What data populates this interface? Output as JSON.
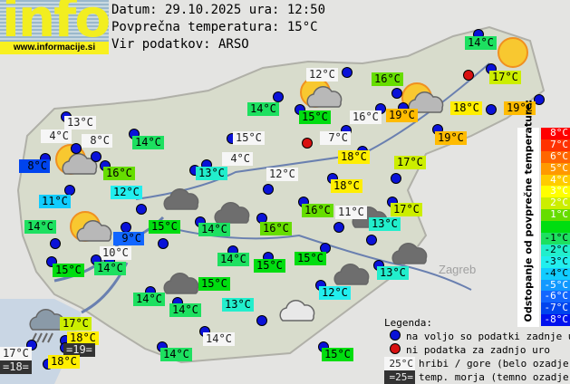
{
  "logo": {
    "word": "info",
    "url": "www.informacije.si"
  },
  "header": {
    "date_line": "Datum: 29.10.2025 ura: 12:50",
    "avg_line": "Povprečna temperatura: 15°C",
    "source_line": "Vir podatkov: ARSO"
  },
  "colors": {
    "station_dot": "#0a12d8",
    "no_data_dot": "#d81010",
    "mountain_bg": "#f6f6f6",
    "sea_bg": "#333333"
  },
  "stations": [
    {
      "t": "14°C",
      "c": "#1de060"
    },
    {
      "t": "12°C",
      "c": "white"
    },
    {
      "t": "16°C",
      "c": "#66dd00"
    },
    {
      "t": "17°C",
      "c": "#ccee00"
    },
    {
      "t": "14°C",
      "c": "#1de060"
    },
    {
      "t": "15°C",
      "c": "#00dd10"
    },
    {
      "t": "16°C",
      "c": "white"
    },
    {
      "t": "19°C",
      "c": "#ffbb00"
    },
    {
      "t": "18°C",
      "c": "#ffee00"
    },
    {
      "t": "19°C",
      "c": "#ffbb00"
    },
    {
      "t": "13°C",
      "c": "white"
    },
    {
      "t": "4°C",
      "c": "white"
    },
    {
      "t": "8°C",
      "c": "white"
    },
    {
      "t": "14°C",
      "c": "#1de060"
    },
    {
      "t": "15°C",
      "c": "white"
    },
    {
      "t": "7°C",
      "c": "white"
    },
    {
      "t": "19°C",
      "c": "#ffbb00"
    },
    {
      "t": "8°C",
      "c": "#0044ee"
    },
    {
      "t": "16°C",
      "c": "#66dd00"
    },
    {
      "t": "4°C",
      "c": "white"
    },
    {
      "t": "18°C",
      "c": "#ffee00"
    },
    {
      "t": "17°C",
      "c": "#ccee00"
    },
    {
      "t": "13°C",
      "c": "#22eecc"
    },
    {
      "t": "12°C",
      "c": "white"
    },
    {
      "t": "12°C",
      "c": "#22eeee"
    },
    {
      "t": "18°C",
      "c": "#ffee00"
    },
    {
      "t": "11°C",
      "c": "#11ccff"
    },
    {
      "t": "16°C",
      "c": "#66dd00"
    },
    {
      "t": "11°C",
      "c": "white"
    },
    {
      "t": "17°C",
      "c": "#ccee00"
    },
    {
      "t": "14°C",
      "c": "#1de060"
    },
    {
      "t": "16°C",
      "c": "#66dd00"
    },
    {
      "t": "13°C",
      "c": "#22eecc"
    },
    {
      "t": "14°C",
      "c": "#1de060"
    },
    {
      "t": "15°C",
      "c": "#00dd10"
    },
    {
      "t": "9°C",
      "c": "#1166ff"
    },
    {
      "t": "10°C",
      "c": "white"
    },
    {
      "t": "15°C",
      "c": "#00dd10"
    },
    {
      "t": "14°C",
      "c": "#1de060"
    },
    {
      "t": "14°C",
      "c": "#1de060"
    },
    {
      "t": "15°C",
      "c": "#00dd10"
    },
    {
      "t": "15°C",
      "c": "#00dd10"
    },
    {
      "t": "13°C",
      "c": "#22eecc"
    },
    {
      "t": "14°C",
      "c": "#1de060"
    },
    {
      "t": "15°C",
      "c": "#00dd10"
    },
    {
      "t": "12°C",
      "c": "#22eeee"
    },
    {
      "t": "14°C",
      "c": "#1de060"
    },
    {
      "t": "13°C",
      "c": "#22eecc"
    },
    {
      "t": "17°C",
      "c": "#ccee00"
    },
    {
      "t": "18°C",
      "c": "#ffee00"
    },
    {
      "t": "=19=",
      "c": "dark"
    },
    {
      "t": "14°C",
      "c": "white"
    },
    {
      "t": "17°C",
      "c": "white"
    },
    {
      "t": "18°C",
      "c": "#ffee00"
    },
    {
      "t": "=18=",
      "c": "dark"
    },
    {
      "t": "14°C",
      "c": "#1de060"
    },
    {
      "t": "15°C",
      "c": "#00dd10"
    }
  ],
  "weather_icons": [
    "sun",
    "partly-cloudy",
    "partly-cloudy",
    "partly-cloudy",
    "partly-cloudy",
    "cloudy-dark",
    "cloudy-dark",
    "cloudy-dark",
    "cloudy-dark",
    "cloudy-dark",
    "cloudy-dark",
    "rain",
    "cloudy-light"
  ],
  "scale": {
    "title": "Odstopanje od povprečne temperature:",
    "steps": [
      {
        "label": "8°C",
        "color": "#ff0000"
      },
      {
        "label": "7°C",
        "color": "#ff3300"
      },
      {
        "label": "6°C",
        "color": "#ff6600"
      },
      {
        "label": "5°C",
        "color": "#ff9900"
      },
      {
        "label": "4°C",
        "color": "#ffcc00"
      },
      {
        "label": "3°C",
        "color": "#ffff00"
      },
      {
        "label": "2°C",
        "color": "#ccee00"
      },
      {
        "label": "1°C",
        "color": "#66dd00"
      },
      {
        "label": "",
        "color": "#00dd10"
      },
      {
        "label": "-1°C",
        "color": "#1de060"
      },
      {
        "label": "-2°C",
        "color": "#22eecc"
      },
      {
        "label": "-3°C",
        "color": "#22eeee"
      },
      {
        "label": "-4°C",
        "color": "#11ccff"
      },
      {
        "label": "-5°C",
        "color": "#1199ff"
      },
      {
        "label": "-6°C",
        "color": "#1166ff"
      },
      {
        "label": "-7°C",
        "color": "#0044ee"
      },
      {
        "label": "-8°C",
        "color": "#0011ee"
      }
    ]
  },
  "legend": {
    "title": "Legenda:",
    "available": "na voljo so podatki zadnje ure",
    "no_data": "ni podatka za zadnjo uro",
    "mountain_sample": "25°C",
    "mountain_text": "hribi / gore (belo ozadje)",
    "sea_sample": "=25=",
    "sea_text": "temp. morja (temno ozadje)"
  }
}
